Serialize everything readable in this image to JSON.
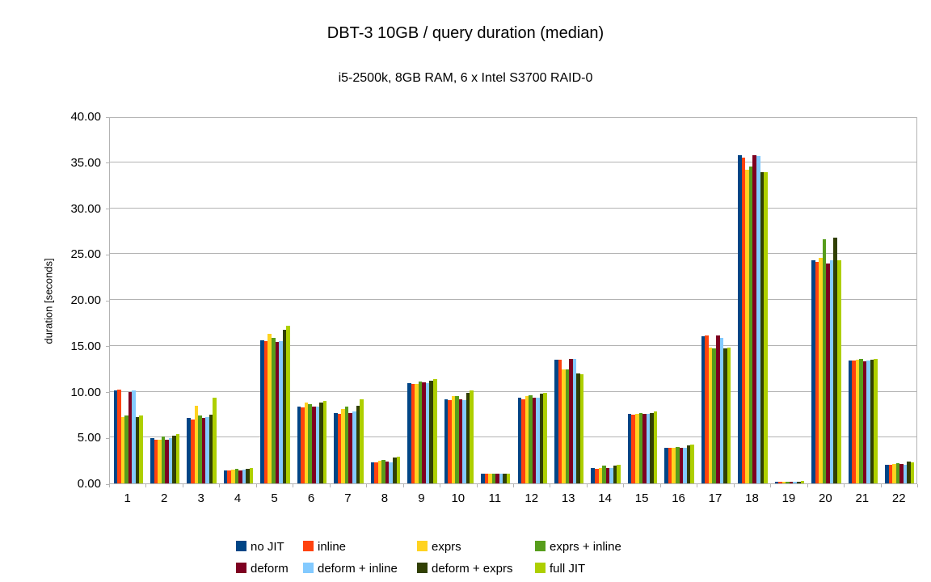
{
  "title": "DBT-3 10GB / query duration (median)",
  "subtitle": "i5-2500k, 8GB RAM, 6 x Intel S3700 RAID-0",
  "chart_data": {
    "type": "bar",
    "title": "DBT-3 10GB / query duration (median)",
    "subtitle": "i5-2500k, 8GB RAM, 6 x Intel S3700 RAID-0",
    "xlabel": "",
    "ylabel": "duration [seconds]",
    "ylim": [
      0,
      40
    ],
    "ytick_step": 5,
    "ytick_labels": [
      "0.00",
      "5.00",
      "10.00",
      "15.00",
      "20.00",
      "25.00",
      "30.00",
      "35.00",
      "40.00"
    ],
    "grid": "horizontal",
    "legend_position": "bottom",
    "categories": [
      "1",
      "2",
      "3",
      "4",
      "5",
      "6",
      "7",
      "8",
      "9",
      "10",
      "11",
      "12",
      "13",
      "14",
      "15",
      "16",
      "17",
      "18",
      "19",
      "20",
      "21",
      "22"
    ],
    "series": [
      {
        "name": "no JIT",
        "color": "#004586",
        "values": [
          10.1,
          4.9,
          7.1,
          1.4,
          15.6,
          8.4,
          7.7,
          2.3,
          10.9,
          9.2,
          1.1,
          9.3,
          13.5,
          1.7,
          7.6,
          3.9,
          16.0,
          35.8,
          0.2,
          24.3,
          13.4,
          2.0
        ]
      },
      {
        "name": "inline",
        "color": "#FF420E",
        "values": [
          10.2,
          4.8,
          7.0,
          1.4,
          15.5,
          8.3,
          7.6,
          2.3,
          10.8,
          9.1,
          1.1,
          9.2,
          13.5,
          1.6,
          7.5,
          3.9,
          16.1,
          35.5,
          0.2,
          24.1,
          13.4,
          2.0
        ]
      },
      {
        "name": "exprs",
        "color": "#FFD320",
        "values": [
          7.2,
          4.8,
          8.5,
          1.5,
          16.3,
          8.8,
          8.1,
          2.5,
          10.8,
          9.5,
          1.1,
          9.5,
          12.4,
          1.7,
          7.6,
          3.9,
          14.8,
          34.2,
          0.2,
          24.6,
          13.5,
          2.1
        ]
      },
      {
        "name": "exprs + inline",
        "color": "#579D1C",
        "values": [
          7.4,
          5.1,
          7.4,
          1.6,
          15.9,
          8.6,
          8.4,
          2.6,
          11.1,
          9.5,
          1.1,
          9.6,
          12.4,
          1.9,
          7.7,
          4.0,
          14.7,
          34.5,
          0.2,
          26.6,
          13.6,
          2.2
        ]
      },
      {
        "name": "deform",
        "color": "#7E0021",
        "values": [
          10.0,
          4.8,
          7.1,
          1.4,
          15.4,
          8.4,
          7.7,
          2.4,
          11.0,
          9.2,
          1.1,
          9.3,
          13.6,
          1.7,
          7.6,
          3.9,
          16.1,
          35.8,
          0.2,
          24.0,
          13.3,
          2.1
        ]
      },
      {
        "name": "deform + inline",
        "color": "#83CAFF",
        "values": [
          10.1,
          4.9,
          7.2,
          1.5,
          15.5,
          8.4,
          7.8,
          2.3,
          10.9,
          9.1,
          1.1,
          9.3,
          13.6,
          1.7,
          7.6,
          3.9,
          15.9,
          35.7,
          0.2,
          24.3,
          13.4,
          2.0
        ]
      },
      {
        "name": "deform + exprs",
        "color": "#314004",
        "values": [
          7.2,
          5.2,
          7.5,
          1.6,
          16.7,
          8.8,
          8.5,
          2.8,
          11.2,
          9.9,
          1.1,
          9.8,
          12.0,
          1.9,
          7.7,
          4.1,
          14.7,
          33.9,
          0.2,
          26.8,
          13.5,
          2.4
        ]
      },
      {
        "name": "full JIT",
        "color": "#AECF00",
        "values": [
          7.4,
          5.4,
          9.3,
          1.7,
          17.2,
          9.0,
          9.2,
          2.9,
          11.4,
          10.1,
          1.1,
          9.9,
          11.9,
          2.0,
          7.8,
          4.2,
          14.8,
          33.9,
          0.3,
          24.3,
          13.6,
          2.3
        ]
      }
    ]
  },
  "style_colors": {
    "grid": "#b3b3b3",
    "axis": "#b3b3b3",
    "text": "#000000",
    "background": "#ffffff"
  }
}
